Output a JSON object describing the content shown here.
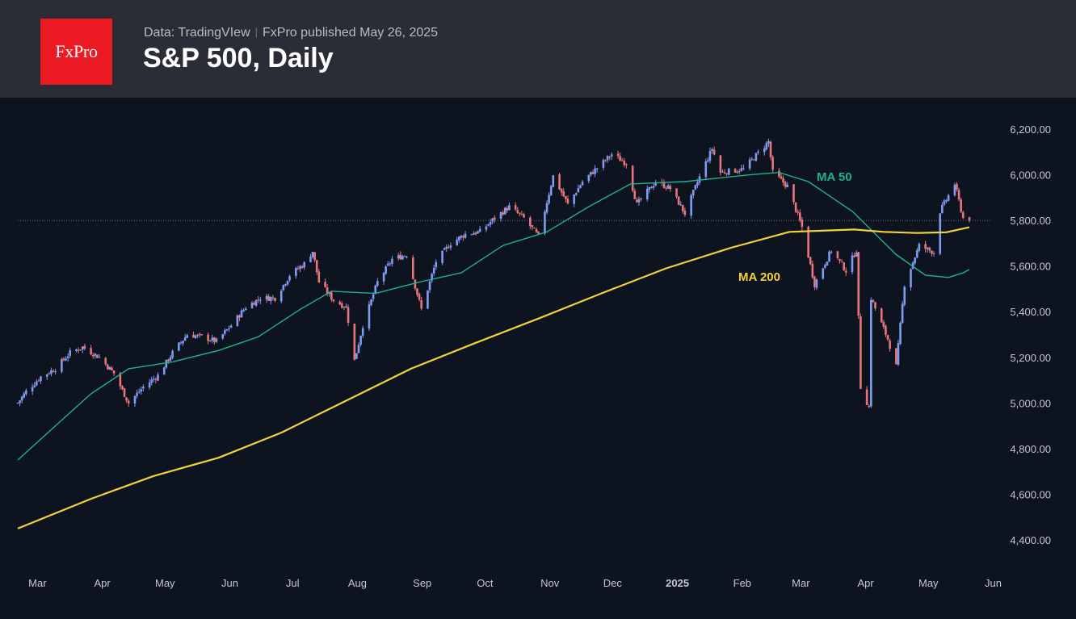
{
  "header": {
    "logo_text": "FxPro",
    "source_label": "Data: TradingVIew",
    "separator": "|",
    "published": "FxPro published May 26, 2025",
    "title": "S&P 500, Daily"
  },
  "colors": {
    "header_bg": "#2a2d35",
    "chart_bg": "#0e1320",
    "logo_bg": "#ec1b23",
    "candle_up": "#7f9df0",
    "candle_down": "#e9767c",
    "ma50": "#1db38f",
    "ma200": "#f0d33a",
    "axis_text": "#c4c7ce"
  },
  "chart_data": {
    "type": "candlestick",
    "y_ticks": [
      "6,200.00",
      "6,000.00",
      "5,800.00",
      "5,600.00",
      "5,400.00",
      "5,200.00",
      "5,000.00",
      "4,800.00",
      "4,600.00",
      "4,400.00"
    ],
    "ylim": [
      4350,
      6270
    ],
    "x_ticks": [
      "Mar",
      "Apr",
      "May",
      "Jun",
      "Jul",
      "Aug",
      "Sep",
      "Oct",
      "Nov",
      "Dec",
      "2025",
      "Feb",
      "Mar",
      "Apr",
      "May",
      "Jun"
    ],
    "x_tick_bold": "2025",
    "last_close_line": 5800,
    "close_series": [
      [
        "2024-02-26",
        5000
      ],
      [
        "2024-03-01",
        5050
      ],
      [
        "2024-03-08",
        5115
      ],
      [
        "2024-03-15",
        5150
      ],
      [
        "2024-03-22",
        5220
      ],
      [
        "2024-03-28",
        5245
      ],
      [
        "2024-04-05",
        5200
      ],
      [
        "2024-04-12",
        5130
      ],
      [
        "2024-04-19",
        5000
      ],
      [
        "2024-04-26",
        5070
      ],
      [
        "2024-05-03",
        5120
      ],
      [
        "2024-05-10",
        5220
      ],
      [
        "2024-05-17",
        5300
      ],
      [
        "2024-05-24",
        5290
      ],
      [
        "2024-05-31",
        5270
      ],
      [
        "2024-06-07",
        5340
      ],
      [
        "2024-06-14",
        5420
      ],
      [
        "2024-06-21",
        5460
      ],
      [
        "2024-06-28",
        5460
      ],
      [
        "2024-07-05",
        5560
      ],
      [
        "2024-07-12",
        5610
      ],
      [
        "2024-07-16",
        5665
      ],
      [
        "2024-07-19",
        5530
      ],
      [
        "2024-07-26",
        5450
      ],
      [
        "2024-08-01",
        5420
      ],
      [
        "2024-08-05",
        5185
      ],
      [
        "2024-08-09",
        5340
      ],
      [
        "2024-08-16",
        5530
      ],
      [
        "2024-08-23",
        5630
      ],
      [
        "2024-08-30",
        5650
      ],
      [
        "2024-09-06",
        5410
      ],
      [
        "2024-09-13",
        5620
      ],
      [
        "2024-09-20",
        5700
      ],
      [
        "2024-09-27",
        5740
      ],
      [
        "2024-10-04",
        5750
      ],
      [
        "2024-10-11",
        5810
      ],
      [
        "2024-10-18",
        5860
      ],
      [
        "2024-10-25",
        5810
      ],
      [
        "2024-11-01",
        5730
      ],
      [
        "2024-11-08",
        5995
      ],
      [
        "2024-11-15",
        5870
      ],
      [
        "2024-11-22",
        5970
      ],
      [
        "2024-11-29",
        6030
      ],
      [
        "2024-12-06",
        6090
      ],
      [
        "2024-12-13",
        6050
      ],
      [
        "2024-12-18",
        5870
      ],
      [
        "2024-12-27",
        5970
      ],
      [
        "2025-01-03",
        5940
      ],
      [
        "2025-01-10",
        5830
      ],
      [
        "2025-01-17",
        5990
      ],
      [
        "2025-01-23",
        6115
      ],
      [
        "2025-01-27",
        6010
      ],
      [
        "2025-02-07",
        6025
      ],
      [
        "2025-02-19",
        6145
      ],
      [
        "2025-02-21",
        6010
      ],
      [
        "2025-02-28",
        5950
      ],
      [
        "2025-03-07",
        5770
      ],
      [
        "2025-03-13",
        5520
      ],
      [
        "2025-03-21",
        5670
      ],
      [
        "2025-03-28",
        5580
      ],
      [
        "2025-04-02",
        5670
      ],
      [
        "2025-04-04",
        5070
      ],
      [
        "2025-04-08",
        4980
      ],
      [
        "2025-04-09",
        5460
      ],
      [
        "2025-04-17",
        5280
      ],
      [
        "2025-04-21",
        5160
      ],
      [
        "2025-04-25",
        5520
      ],
      [
        "2025-05-02",
        5690
      ],
      [
        "2025-05-09",
        5660
      ],
      [
        "2025-05-12",
        5840
      ],
      [
        "2025-05-19",
        5960
      ],
      [
        "2025-05-23",
        5810
      ]
    ],
    "series": [
      {
        "name": "MA 50",
        "values": [
          [
            "2024-02-26",
            4750
          ],
          [
            "2024-03-15",
            4900
          ],
          [
            "2024-04-01",
            5040
          ],
          [
            "2024-04-19",
            5150
          ],
          [
            "2024-05-10",
            5180
          ],
          [
            "2024-06-01",
            5230
          ],
          [
            "2024-06-20",
            5290
          ],
          [
            "2024-07-10",
            5410
          ],
          [
            "2024-07-25",
            5490
          ],
          [
            "2024-08-15",
            5480
          ],
          [
            "2024-09-05",
            5530
          ],
          [
            "2024-09-25",
            5570
          ],
          [
            "2024-10-15",
            5690
          ],
          [
            "2024-11-05",
            5750
          ],
          [
            "2024-11-25",
            5860
          ],
          [
            "2024-12-15",
            5960
          ],
          [
            "2025-01-10",
            5970
          ],
          [
            "2025-02-10",
            6000
          ],
          [
            "2025-02-24",
            6010
          ],
          [
            "2025-03-10",
            5970
          ],
          [
            "2025-03-31",
            5840
          ],
          [
            "2025-04-21",
            5650
          ],
          [
            "2025-05-05",
            5560
          ],
          [
            "2025-05-16",
            5550
          ],
          [
            "2025-05-23",
            5570
          ],
          [
            "2025-05-26",
            5585
          ]
        ]
      },
      {
        "name": "MA 200",
        "values": [
          [
            "2024-02-26",
            4450
          ],
          [
            "2024-04-01",
            4580
          ],
          [
            "2024-05-01",
            4680
          ],
          [
            "2024-06-01",
            4760
          ],
          [
            "2024-07-01",
            4870
          ],
          [
            "2024-08-01",
            5010
          ],
          [
            "2024-09-01",
            5150
          ],
          [
            "2024-10-01",
            5260
          ],
          [
            "2024-11-01",
            5370
          ],
          [
            "2024-12-01",
            5480
          ],
          [
            "2025-01-01",
            5590
          ],
          [
            "2025-02-01",
            5680
          ],
          [
            "2025-03-01",
            5750
          ],
          [
            "2025-04-01",
            5760
          ],
          [
            "2025-04-15",
            5750
          ],
          [
            "2025-05-01",
            5745
          ],
          [
            "2025-05-15",
            5748
          ],
          [
            "2025-05-26",
            5770
          ]
        ]
      }
    ],
    "annotations": [
      "MA 50",
      "MA 200"
    ]
  }
}
